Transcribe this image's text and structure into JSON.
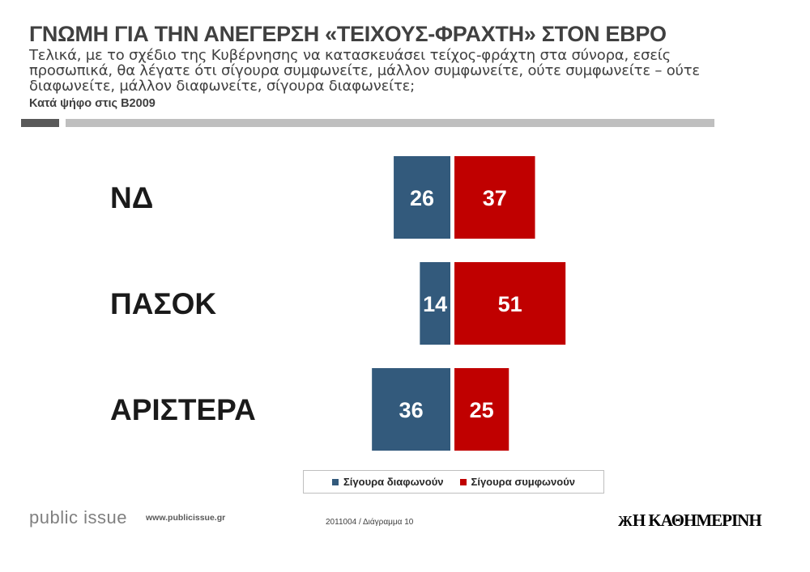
{
  "header": {
    "title": "ΓΝΩΜΗ ΓΙΑ ΤΗΝ ΑΝΕΓΕΡΣΗ «ΤΕΙΧΟΥΣ-ΦΡΑΧΤΗ» ΣΤΟΝ ΕΒΡΟ",
    "subtitle": "Τελικά, με το σχέδιο της Κυβέρνησης να κατασκευάσει τείχος-φράχτη στα σύνορα, εσείς προσωπικά, θα λέγατε ότι σίγουρα  συμφωνείτε, μάλλον συμφωνείτε, ούτε συμφωνείτε – ούτε διαφωνείτε, μάλλον διαφωνείτε, σίγουρα διαφωνείτε;",
    "basis": "Κατά ψήφο στις Β2009"
  },
  "chart_data": {
    "type": "bar",
    "orientation": "horizontal-diverging",
    "categories": [
      "ΝΔ",
      "ΠΑΣΟΚ",
      "ΑΡΙΣΤΕΡΑ"
    ],
    "series": [
      {
        "name": "Σίγουρα διαφωνούν",
        "values": [
          26,
          14,
          36
        ],
        "color": "#335a7c",
        "direction": "left"
      },
      {
        "name": "Σίγουρα συμφωνούν",
        "values": [
          37,
          51,
          25
        ],
        "color": "#c00000",
        "direction": "right"
      }
    ],
    "legend_position": "bottom-center",
    "grid": false
  },
  "footer": {
    "brand": "public issue",
    "url": "www.publicissue.gr",
    "code": "2011004 / Διάγραμμα 10",
    "newspaper_mark": "Ж",
    "newspaper": "Η ΚΑΘΗΜΕΡΙΝΗ"
  }
}
